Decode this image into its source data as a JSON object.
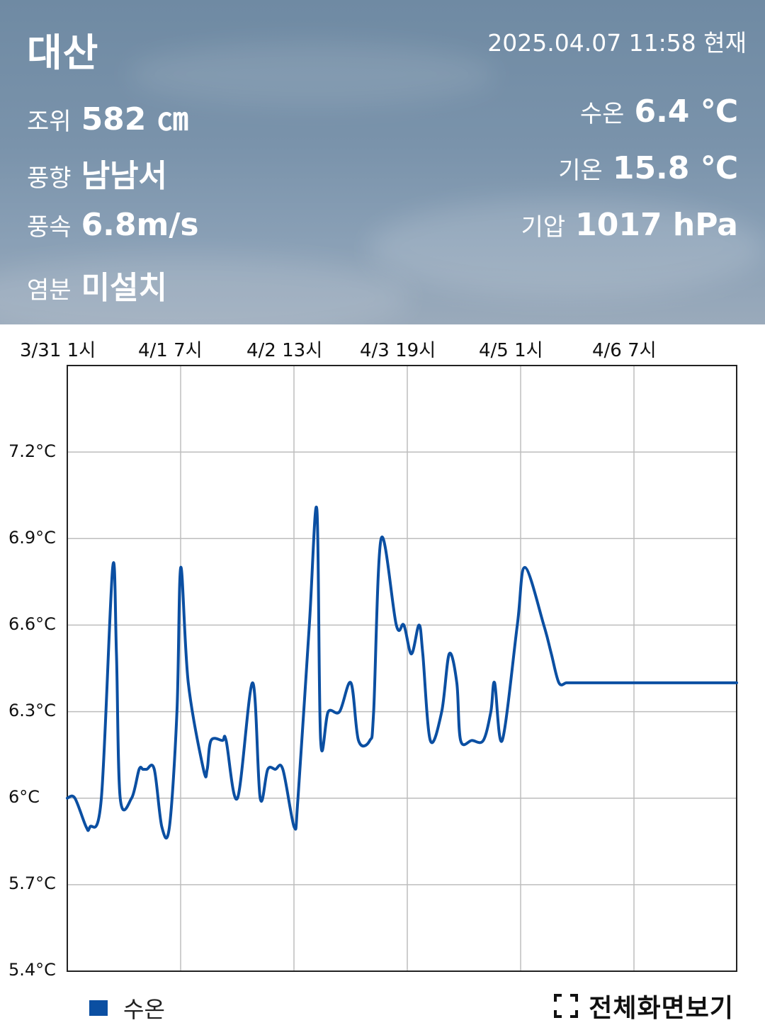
{
  "header": {
    "station": "대산",
    "timestamp": "2025.04.07 11:58 현재",
    "tide_label": "조위",
    "tide_value": "582 ㎝",
    "wind_dir_label": "풍향",
    "wind_dir_value": "남남서",
    "wind_speed_label": "풍속",
    "wind_speed_value": "6.8m/s",
    "salinity_label": "염분",
    "salinity_value": "미설치",
    "water_temp_label": "수온",
    "water_temp_value": "6.4 ℃",
    "air_temp_label": "기온",
    "air_temp_value": "15.8 ℃",
    "pressure_label": "기압",
    "pressure_value": "1017 hPa"
  },
  "chart_data": {
    "type": "line",
    "x_tick_labels": [
      "3/31 1시",
      "4/1 7시",
      "4/2 13시",
      "4/3 19시",
      "4/5 1시",
      "4/6 7시"
    ],
    "y_tick_labels": [
      "7.2°C",
      "6.9°C",
      "6.6°C",
      "6.3°C",
      "6°C",
      "5.7°C",
      "5.4°C"
    ],
    "ylim": [
      5.4,
      7.5
    ],
    "x_unit": "hours since 3/31 1시",
    "xlim": [
      0,
      177
    ],
    "grid": true,
    "series": [
      {
        "name": "수온",
        "color": "#0b4fa2",
        "x": [
          0,
          2,
          5,
          6,
          9,
          12,
          13,
          14,
          17,
          19,
          20,
          21,
          23,
          25,
          27,
          29,
          30,
          32,
          36,
          37,
          38,
          41,
          42,
          45,
          49,
          51,
          53,
          55,
          57,
          60,
          61,
          64,
          66,
          67,
          69,
          72,
          75,
          77,
          80,
          81,
          83,
          87,
          89,
          91,
          93,
          94,
          96,
          99,
          101,
          103,
          104,
          107,
          110,
          112,
          113,
          115,
          119,
          121,
          126,
          128,
          130,
          132,
          134,
          140,
          142,
          143,
          145,
          150,
          151,
          154,
          155,
          158,
          161,
          163,
          165,
          168,
          171,
          173,
          175,
          177
        ],
        "values": [
          6.0,
          6.0,
          5.9,
          5.9,
          6.0,
          6.8,
          6.5,
          6.0,
          6.0,
          6.1,
          6.1,
          6.1,
          6.1,
          5.9,
          5.9,
          6.3,
          6.8,
          6.4,
          6.1,
          6.1,
          6.2,
          6.2,
          6.2,
          6.0,
          6.4,
          6.0,
          6.1,
          6.1,
          6.1,
          5.9,
          6.0,
          6.6,
          7.0,
          6.2,
          6.3,
          6.3,
          6.4,
          6.2,
          6.2,
          6.3,
          6.9,
          6.6,
          6.6,
          6.5,
          6.6,
          6.5,
          6.2,
          6.3,
          6.5,
          6.4,
          6.2,
          6.2,
          6.2,
          6.3,
          6.4,
          6.2,
          6.6,
          6.8,
          6.6,
          6.5,
          6.4,
          6.4,
          6.4,
          6.4,
          6.4,
          6.4,
          6.4,
          6.4,
          6.4,
          6.4,
          6.4,
          6.4,
          6.4,
          6.4,
          6.4,
          6.4,
          6.4,
          6.4,
          6.4,
          6.4
        ]
      }
    ]
  },
  "legend": {
    "label": "수온"
  },
  "footer": {
    "fullscreen_label": "전체화면보기"
  }
}
